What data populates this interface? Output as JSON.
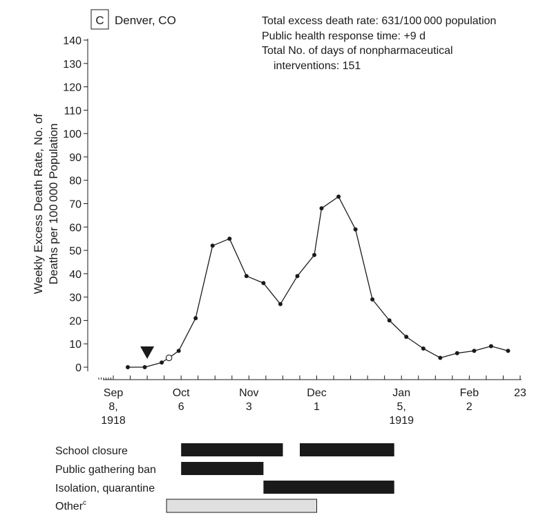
{
  "panel": {
    "letter": "C",
    "city": "Denver, CO",
    "stats": [
      "Total excess death rate: 631/100 000 population",
      "Public health response time: +9 d",
      "Total No. of days of nonpharmaceutical",
      "interventions: 151"
    ]
  },
  "chart_data": {
    "type": "line",
    "ylabel_lines": [
      "Weekly Excess Death Rate, No. of",
      "Deaths per 100 000 Population"
    ],
    "ylim": [
      0,
      140
    ],
    "yticks": [
      0,
      10,
      20,
      30,
      40,
      50,
      60,
      70,
      80,
      90,
      100,
      110,
      120,
      130,
      140
    ],
    "x_dates": [
      "1918-09-08",
      "1919-02-23"
    ],
    "xtick_labels": [
      {
        "date": "1918-09-08",
        "lines": [
          "Sep",
          "8,",
          "1918"
        ]
      },
      {
        "date": "1918-10-06",
        "lines": [
          "Oct",
          "6"
        ]
      },
      {
        "date": "1918-11-03",
        "lines": [
          "Nov",
          "3"
        ]
      },
      {
        "date": "1918-12-01",
        "lines": [
          "Dec",
          "1"
        ]
      },
      {
        "date": "1919-01-05",
        "lines": [
          "Jan",
          "5,",
          "1919"
        ]
      },
      {
        "date": "1919-02-02",
        "lines": [
          "Feb",
          "2"
        ]
      },
      {
        "date": "1919-02-23",
        "lines": [
          "23"
        ]
      }
    ],
    "series": [
      {
        "x": [
          "1918-09-14",
          "1918-09-21",
          "1918-09-28",
          "1918-10-01",
          "1918-10-05",
          "1918-10-12",
          "1918-10-19",
          "1918-10-26",
          "1918-11-02",
          "1918-11-09",
          "1918-11-16",
          "1918-11-23",
          "1918-11-30",
          "1918-12-03",
          "1918-12-10",
          "1918-12-17",
          "1918-12-24",
          "1918-12-31",
          "1919-01-07",
          "1919-01-14",
          "1919-01-21",
          "1919-01-28",
          "1919-02-04",
          "1919-02-11",
          "1919-02-18"
        ],
        "y": [
          0,
          0,
          2,
          4,
          7,
          21,
          52,
          55,
          39,
          36,
          27,
          39,
          48,
          68,
          73,
          59,
          29,
          20,
          13,
          8,
          4,
          6,
          7,
          9,
          7
        ],
        "open_marker_index": 3
      }
    ],
    "response_marker": {
      "date": "1918-09-22",
      "symbol": "filled-triangle-down"
    },
    "interventions": [
      {
        "label": "School closure",
        "periods": [
          [
            "1918-10-06",
            "1918-11-17"
          ],
          [
            "1918-11-24",
            "1919-01-02"
          ]
        ],
        "fill": "#1a1a1a"
      },
      {
        "label": "Public gathering ban",
        "periods": [
          [
            "1918-10-06",
            "1918-11-09"
          ]
        ],
        "fill": "#1a1a1a"
      },
      {
        "label": "Isolation, quarantine",
        "periods": [
          [
            "1918-11-09",
            "1919-01-02"
          ]
        ],
        "fill": "#1a1a1a"
      },
      {
        "label": "Other",
        "superscript": "c",
        "periods": [
          [
            "1918-09-30",
            "1918-12-01"
          ]
        ],
        "fill": "#e0e0e0"
      }
    ]
  }
}
